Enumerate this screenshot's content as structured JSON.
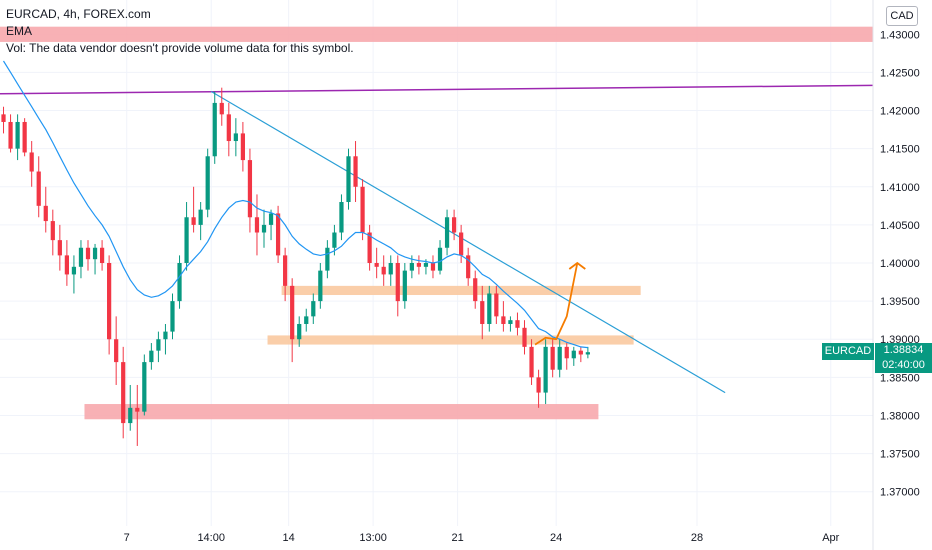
{
  "header": {
    "symbol_line": "EURCAD, 4h, FOREX.com",
    "indicator": "EMA",
    "volume_note": "Vol: The data vendor doesn't provide volume data for this symbol.",
    "currency": "CAD"
  },
  "price_tag": {
    "symbol": "EURCAD",
    "price": "1.38834",
    "countdown": "02:40:00",
    "color": "#089981"
  },
  "colors": {
    "up": "#089981",
    "down": "#f23645",
    "ema": "#2196f3",
    "trend": "#2a9fd6",
    "resistance_line": "#9c27b0",
    "zone_red": "#f7a8ad",
    "zone_orange": "#f9c9a0",
    "projection": "#f57c00"
  },
  "chart_data": {
    "type": "candlestick",
    "yticks": [
      "1.43000",
      "1.42500",
      "1.42000",
      "1.41500",
      "1.41000",
      "1.40500",
      "1.40000",
      "1.39500",
      "1.39000",
      "1.38500",
      "1.38000",
      "1.37500",
      "1.37000"
    ],
    "ytick_values": [
      1.43,
      1.425,
      1.42,
      1.415,
      1.41,
      1.405,
      1.4,
      1.395,
      1.39,
      1.385,
      1.38,
      1.375,
      1.37
    ],
    "ylim": [
      1.3655,
      1.4345
    ],
    "xticks": [
      "7",
      "14:00",
      "14",
      "13:00",
      "21",
      "24",
      "28",
      "Apr"
    ],
    "xtick_bars": [
      18,
      30,
      41,
      53,
      65,
      79,
      99,
      118
    ],
    "xlim_bars": [
      0,
      124
    ],
    "candles": [
      [
        1.4195,
        1.4205,
        1.417,
        1.4185
      ],
      [
        1.4185,
        1.4195,
        1.4145,
        1.415
      ],
      [
        1.415,
        1.4195,
        1.4135,
        1.4185
      ],
      [
        1.4185,
        1.419,
        1.414,
        1.4145
      ],
      [
        1.4145,
        1.416,
        1.41,
        1.412
      ],
      [
        1.412,
        1.414,
        1.406,
        1.4075
      ],
      [
        1.4075,
        1.41,
        1.404,
        1.4055
      ],
      [
        1.4055,
        1.407,
        1.401,
        1.403
      ],
      [
        1.403,
        1.405,
        1.399,
        1.401
      ],
      [
        1.401,
        1.403,
        1.397,
        1.3985
      ],
      [
        1.3985,
        1.401,
        1.396,
        1.3995
      ],
      [
        1.3995,
        1.403,
        1.398,
        1.402
      ],
      [
        1.402,
        1.403,
        1.399,
        1.4005
      ],
      [
        1.4005,
        1.4025,
        1.3985,
        1.402
      ],
      [
        1.402,
        1.403,
        1.399,
        1.4
      ],
      [
        1.4,
        1.401,
        1.388,
        1.39
      ],
      [
        1.39,
        1.393,
        1.384,
        1.387
      ],
      [
        1.387,
        1.389,
        1.377,
        1.379
      ],
      [
        1.379,
        1.384,
        1.378,
        1.381
      ],
      [
        1.381,
        1.384,
        1.376,
        1.3805
      ],
      [
        1.3805,
        1.388,
        1.38,
        1.387
      ],
      [
        1.387,
        1.3895,
        1.386,
        1.3885
      ],
      [
        1.3885,
        1.391,
        1.387,
        1.39
      ],
      [
        1.39,
        1.392,
        1.388,
        1.391
      ],
      [
        1.391,
        1.396,
        1.39,
        1.395
      ],
      [
        1.395,
        1.401,
        1.394,
        1.4
      ],
      [
        1.4,
        1.408,
        1.399,
        1.406
      ],
      [
        1.406,
        1.41,
        1.404,
        1.405
      ],
      [
        1.405,
        1.408,
        1.403,
        1.407
      ],
      [
        1.407,
        1.415,
        1.406,
        1.414
      ],
      [
        1.414,
        1.4225,
        1.413,
        1.421
      ],
      [
        1.421,
        1.423,
        1.418,
        1.4195
      ],
      [
        1.4195,
        1.421,
        1.414,
        1.416
      ],
      [
        1.416,
        1.419,
        1.414,
        1.417
      ],
      [
        1.417,
        1.4185,
        1.412,
        1.4135
      ],
      [
        1.4135,
        1.415,
        1.404,
        1.406
      ],
      [
        1.406,
        1.409,
        1.401,
        1.404
      ],
      [
        1.404,
        1.407,
        1.402,
        1.405
      ],
      [
        1.405,
        1.407,
        1.403,
        1.4065
      ],
      [
        1.4065,
        1.4075,
        1.4,
        1.401
      ],
      [
        1.401,
        1.402,
        1.395,
        1.397
      ],
      [
        1.397,
        1.398,
        1.387,
        1.39
      ],
      [
        1.39,
        1.393,
        1.389,
        1.392
      ],
      [
        1.392,
        1.394,
        1.391,
        1.393
      ],
      [
        1.393,
        1.396,
        1.392,
        1.395
      ],
      [
        1.395,
        1.4,
        1.394,
        1.399
      ],
      [
        1.399,
        1.403,
        1.398,
        1.402
      ],
      [
        1.402,
        1.405,
        1.401,
        1.404
      ],
      [
        1.404,
        1.409,
        1.403,
        1.408
      ],
      [
        1.408,
        1.415,
        1.407,
        1.414
      ],
      [
        1.414,
        1.416,
        1.408,
        1.41
      ],
      [
        1.41,
        1.411,
        1.403,
        1.404
      ],
      [
        1.404,
        1.405,
        1.399,
        1.4
      ],
      [
        1.4,
        1.402,
        1.398,
        1.3995
      ],
      [
        1.3995,
        1.401,
        1.397,
        1.3985
      ],
      [
        1.3985,
        1.401,
        1.397,
        1.4
      ],
      [
        1.4,
        1.401,
        1.393,
        1.395
      ],
      [
        1.395,
        1.4,
        1.394,
        1.399
      ],
      [
        1.399,
        1.401,
        1.398,
        1.4
      ],
      [
        1.4,
        1.401,
        1.3985,
        1.3995
      ],
      [
        1.3995,
        1.4005,
        1.3985,
        1.4
      ],
      [
        1.4,
        1.401,
        1.398,
        1.399
      ],
      [
        1.399,
        1.403,
        1.3985,
        1.402
      ],
      [
        1.402,
        1.407,
        1.401,
        1.406
      ],
      [
        1.406,
        1.407,
        1.403,
        1.404
      ],
      [
        1.404,
        1.405,
        1.4,
        1.401
      ],
      [
        1.401,
        1.402,
        1.397,
        1.398
      ],
      [
        1.398,
        1.399,
        1.394,
        1.395
      ],
      [
        1.395,
        1.397,
        1.39,
        1.392
      ],
      [
        1.392,
        1.397,
        1.391,
        1.396
      ],
      [
        1.396,
        1.397,
        1.392,
        1.393
      ],
      [
        1.393,
        1.395,
        1.391,
        1.392
      ],
      [
        1.392,
        1.393,
        1.391,
        1.3925
      ],
      [
        1.3925,
        1.3935,
        1.3905,
        1.3915
      ],
      [
        1.3915,
        1.3925,
        1.388,
        1.389
      ],
      [
        1.389,
        1.39,
        1.384,
        1.385
      ],
      [
        1.385,
        1.386,
        1.381,
        1.383
      ],
      [
        1.383,
        1.39,
        1.3815,
        1.389
      ],
      [
        1.389,
        1.39,
        1.385,
        1.386
      ],
      [
        1.386,
        1.39,
        1.385,
        1.389
      ],
      [
        1.389,
        1.3895,
        1.386,
        1.3875
      ],
      [
        1.3875,
        1.389,
        1.3865,
        1.3885
      ],
      [
        1.3885,
        1.389,
        1.387,
        1.388
      ],
      [
        1.388,
        1.389,
        1.3875,
        1.3883
      ]
    ],
    "ema": [
      1.4265,
      1.425,
      1.4235,
      1.422,
      1.4205,
      1.419,
      1.4175,
      1.4158,
      1.414,
      1.4122,
      1.4105,
      1.409,
      1.4075,
      1.4062,
      1.405,
      1.4035,
      1.4015,
      1.3995,
      1.3978,
      1.3965,
      1.3958,
      1.3955,
      1.3957,
      1.3962,
      1.397,
      1.3982,
      1.3995,
      1.4005,
      1.4015,
      1.4028,
      1.4045,
      1.406,
      1.4072,
      1.408,
      1.4082,
      1.408,
      1.4072,
      1.4068,
      1.4066,
      1.4062,
      1.405,
      1.4035,
      1.4025,
      1.4018,
      1.4012,
      1.401,
      1.4012,
      1.4016,
      1.4022,
      1.4032,
      1.404,
      1.404,
      1.4036,
      1.403,
      1.4025,
      1.402,
      1.4012,
      1.4008,
      1.4005,
      1.4003,
      1.4002,
      1.4,
      1.4002,
      1.4008,
      1.4012,
      1.401,
      1.4004,
      1.3995,
      1.3985,
      1.398,
      1.3972,
      1.3963,
      1.3955,
      1.3947,
      1.3938,
      1.3926,
      1.3914,
      1.391,
      1.3903,
      1.39,
      1.3896,
      1.3893,
      1.389,
      1.3889
    ],
    "lines": {
      "resistance": {
        "from": [
          0,
          1.4222
        ],
        "to": [
          124,
          1.4233
        ]
      },
      "trend": {
        "from": [
          30,
          1.4225
        ],
        "to": [
          103,
          1.383
        ]
      }
    },
    "zones": [
      {
        "name": "top",
        "bar_from": 0,
        "bar_to": 124,
        "y_top": 1.431,
        "y_bot": 1.429,
        "color": "zone_red"
      },
      {
        "name": "support-upper",
        "bar_from": 40,
        "bar_to": 91,
        "y_top": 1.397,
        "y_bot": 1.3958,
        "color": "zone_orange"
      },
      {
        "name": "support-lower",
        "bar_from": 38,
        "bar_to": 90,
        "y_top": 1.3905,
        "y_bot": 1.3893,
        "color": "zone_orange"
      },
      {
        "name": "bottom",
        "bar_from": 12,
        "bar_to": 85,
        "y_top": 1.3815,
        "y_bot": 1.3795,
        "color": "zone_red"
      }
    ],
    "projection": [
      [
        76,
        1.3893
      ],
      [
        77.5,
        1.3902
      ],
      [
        79,
        1.39
      ],
      [
        80.5,
        1.393
      ],
      [
        82,
        1.4
      ]
    ]
  }
}
